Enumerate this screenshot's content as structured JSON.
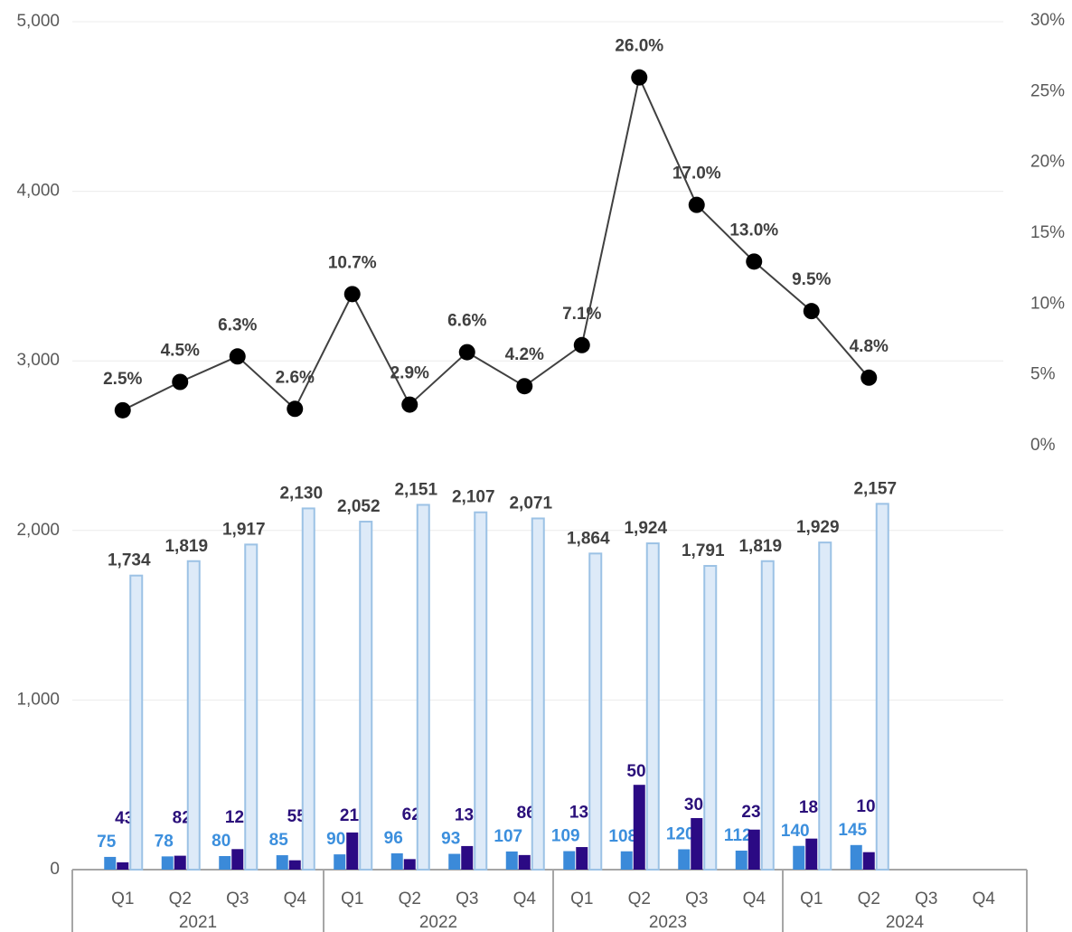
{
  "chart_data": {
    "type": "bar_line",
    "categories": [
      "Q1",
      "Q2",
      "Q3",
      "Q4",
      "Q1",
      "Q2",
      "Q3",
      "Q4",
      "Q1",
      "Q2",
      "Q3",
      "Q4",
      "Q1",
      "Q2",
      "Q3",
      "Q4"
    ],
    "groups": [
      "2021",
      "2022",
      "2023",
      "2024"
    ],
    "series": [
      {
        "type": "bar",
        "color": "#3b8ad9",
        "label_color": "#3c8fdd",
        "values": [
          75,
          78,
          80,
          85,
          90,
          96,
          93,
          107,
          109,
          108,
          120,
          112,
          140,
          145,
          null,
          null
        ]
      },
      {
        "type": "bar",
        "color": "#2b0a84",
        "label_color": "#2a0f7a",
        "values": [
          43,
          82,
          121,
          55,
          219,
          62,
          139,
          86,
          133,
          500,
          304,
          236,
          183,
          103,
          null,
          null
        ]
      },
      {
        "type": "bar",
        "color": "#ddeaf8",
        "stroke": "#9cc2e5",
        "label_color": "#404040",
        "values": [
          1734,
          1819,
          1917,
          2130,
          2052,
          2151,
          2107,
          2071,
          1864,
          1924,
          1791,
          1819,
          1929,
          2157,
          null,
          null
        ],
        "value_labels": [
          "1,734",
          "1,819",
          "1,917",
          "2,130",
          "2,052",
          "2,151",
          "2,107",
          "2,071",
          "1,864",
          "1,924",
          "1,791",
          "1,819",
          "1,929",
          "2,157",
          null,
          null
        ]
      },
      {
        "type": "line",
        "axis": "y2",
        "color": "#404040",
        "marker_color": "#000000",
        "values": [
          2.5,
          4.5,
          6.3,
          2.6,
          10.7,
          2.9,
          6.6,
          4.2,
          7.1,
          26.0,
          17.0,
          13.0,
          9.5,
          4.8,
          null,
          null
        ],
        "value_labels": [
          "2.5%",
          "4.5%",
          "6.3%",
          "2.6%",
          "10.7%",
          "2.9%",
          "6.6%",
          "4.2%",
          "7.1%",
          "26.0%",
          "17.0%",
          "13.0%",
          "9.5%",
          "4.8%",
          null,
          null
        ]
      }
    ],
    "ylim": [
      0,
      5000
    ],
    "yticks": [
      0,
      {
        "value": 1000,
        "label": "1,000"
      },
      {
        "value": 2000,
        "label": "2,000"
      },
      {
        "value": 3000,
        "label": "3,000"
      },
      {
        "value": 4000,
        "label": "4,000"
      },
      {
        "value": 5000,
        "label": "5,000"
      }
    ],
    "y2lim": [
      0,
      30
    ],
    "y2ticks": [
      {
        "value": 0,
        "label": "0%"
      },
      {
        "value": 5,
        "label": "5%"
      },
      {
        "value": 10,
        "label": "10%"
      },
      {
        "value": 15,
        "label": "15%"
      },
      {
        "value": 20,
        "label": "20%"
      },
      {
        "value": 25,
        "label": "25%"
      },
      {
        "value": 30,
        "label": "30%"
      }
    ],
    "grid": true
  }
}
